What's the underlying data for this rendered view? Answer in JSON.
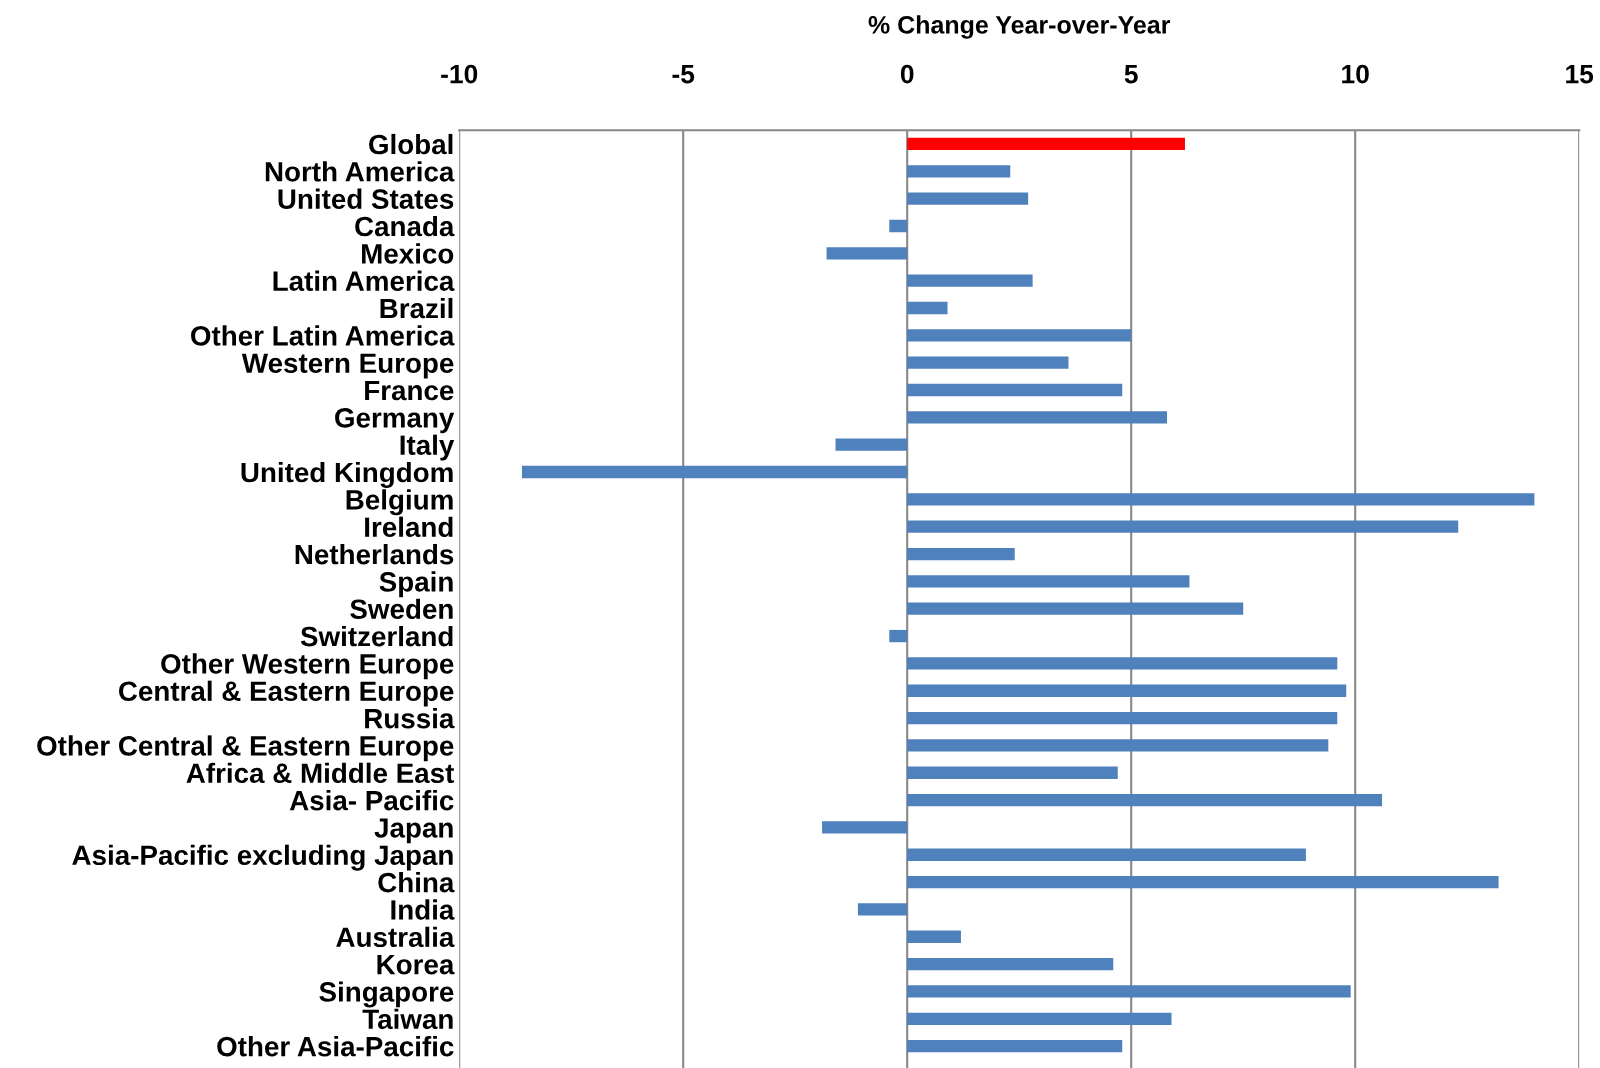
{
  "chart_data": {
    "type": "bar",
    "orientation": "horizontal",
    "xlabel": "% Change Year-over-Year",
    "categories": [
      "Global",
      "North America",
      "United States",
      "Canada",
      "Mexico",
      "Latin America",
      "Brazil",
      "Other Latin America",
      "Western Europe",
      "France",
      "Germany",
      "Italy",
      "United Kingdom",
      "Belgium",
      "Ireland",
      "Netherlands",
      "Spain",
      "Sweden",
      "Switzerland",
      "Other Western Europe",
      "Central & Eastern Europe",
      "Russia",
      "Other Central & Eastern Europe",
      "Africa & Middle East",
      "Asia- Pacific",
      "Japan",
      "Asia-Pacific excluding Japan",
      "China",
      "India",
      "Australia",
      "Korea",
      "Singapore",
      "Taiwan",
      "Other Asia-Pacific"
    ],
    "values": [
      6.2,
      2.3,
      2.7,
      -0.4,
      -1.8,
      2.8,
      0.9,
      5.0,
      3.6,
      4.8,
      5.8,
      -1.6,
      -8.6,
      14.0,
      12.3,
      2.4,
      6.3,
      7.5,
      -0.4,
      9.6,
      9.8,
      9.6,
      9.4,
      4.7,
      10.6,
      -1.9,
      8.9,
      13.2,
      -1.1,
      1.2,
      4.6,
      9.9,
      5.9,
      4.8
    ],
    "colors": [
      "#ff0000",
      "#4f81bd",
      "#4f81bd",
      "#4f81bd",
      "#4f81bd",
      "#4f81bd",
      "#4f81bd",
      "#4f81bd",
      "#4f81bd",
      "#4f81bd",
      "#4f81bd",
      "#4f81bd",
      "#4f81bd",
      "#4f81bd",
      "#4f81bd",
      "#4f81bd",
      "#4f81bd",
      "#4f81bd",
      "#4f81bd",
      "#4f81bd",
      "#4f81bd",
      "#4f81bd",
      "#4f81bd",
      "#4f81bd",
      "#4f81bd",
      "#4f81bd",
      "#4f81bd",
      "#4f81bd",
      "#4f81bd",
      "#4f81bd",
      "#4f81bd",
      "#4f81bd",
      "#4f81bd",
      "#4f81bd"
    ],
    "xlim": [
      -10,
      15
    ],
    "xticks": [
      -10,
      -5,
      0,
      5,
      10,
      15
    ],
    "grid": "x",
    "legend": false
  }
}
